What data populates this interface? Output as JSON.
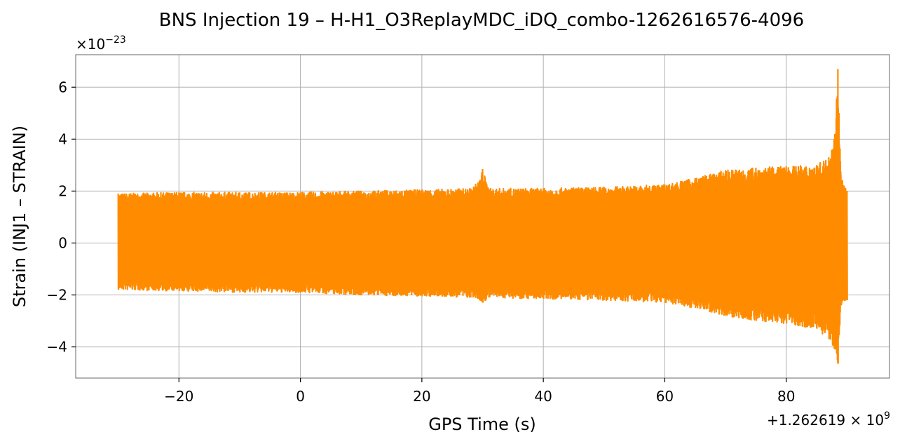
{
  "chart_data": {
    "type": "line",
    "title": "BNS Injection 19 – H-H1_O3ReplayMDC_iDQ_combo-1262616576-4096",
    "xlabel": "GPS Time (s)",
    "ylabel": "Strain (INJ1 – STRAIN)",
    "x_offset_label": "+1.262619 × 10",
    "x_offset_exponent": "9",
    "y_scale_label": "×10",
    "y_scale_exponent": "−23",
    "xlim": [
      -37,
      97
    ],
    "ylim": [
      -5.2,
      7.25
    ],
    "x_ticks": [
      {
        "value": -20,
        "label": "−20"
      },
      {
        "value": 0,
        "label": "0"
      },
      {
        "value": 20,
        "label": "20"
      },
      {
        "value": 40,
        "label": "40"
      },
      {
        "value": 60,
        "label": "60"
      },
      {
        "value": 80,
        "label": "80"
      }
    ],
    "y_ticks": [
      {
        "value": -4,
        "label": "−4"
      },
      {
        "value": -2,
        "label": "−2"
      },
      {
        "value": 0,
        "label": "0"
      },
      {
        "value": 2,
        "label": "2"
      },
      {
        "value": 4,
        "label": "4"
      },
      {
        "value": 6,
        "label": "6"
      }
    ],
    "grid": true,
    "series": [
      {
        "color": "#ff8c00",
        "x_range": [
          -30,
          90
        ],
        "envelope": {
          "x": [
            -30,
            -20,
            -10,
            0,
            10,
            20,
            28,
            29.5,
            30,
            31,
            40,
            50,
            60,
            65,
            70,
            75,
            80,
            85,
            87,
            88,
            88.5,
            89,
            90
          ],
          "upper": [
            1.9,
            1.95,
            1.95,
            1.95,
            2.0,
            2.05,
            2.1,
            2.4,
            2.85,
            2.1,
            2.1,
            2.15,
            2.25,
            2.5,
            2.8,
            2.9,
            2.95,
            3.0,
            3.3,
            4.2,
            6.7,
            2.6,
            2.0
          ],
          "lower": [
            -1.8,
            -1.85,
            -1.9,
            -1.9,
            -2.0,
            -2.05,
            -2.1,
            -2.2,
            -2.3,
            -2.1,
            -2.15,
            -2.2,
            -2.3,
            -2.5,
            -2.8,
            -3.0,
            -3.1,
            -3.3,
            -3.7,
            -4.1,
            -4.65,
            -2.4,
            -2.2
          ]
        }
      }
    ]
  }
}
